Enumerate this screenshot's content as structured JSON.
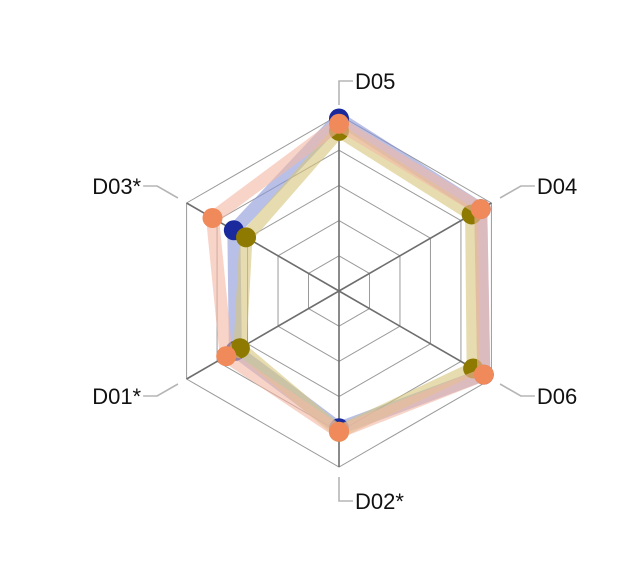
{
  "chart_data": {
    "type": "radar",
    "axes": [
      "D05",
      "D04",
      "D06",
      "D02*",
      "D01*",
      "D03*"
    ],
    "rmax": 1.0,
    "grid_levels": [
      0.2,
      0.4,
      0.6,
      0.8,
      1.0
    ],
    "grid": true,
    "series": [
      {
        "values": [
          0.98,
          0.93,
          0.95,
          0.78,
          0.68,
          0.69
        ],
        "color": "#1a2a9c",
        "band_color": "#8a96d8"
      },
      {
        "values": [
          0.91,
          0.87,
          0.88,
          0.8,
          0.65,
          0.61
        ],
        "color": "#8e7a00",
        "band_color": "#d6c57a"
      },
      {
        "values": [
          0.95,
          0.93,
          0.95,
          0.8,
          0.74,
          0.83
        ],
        "color": "#f08a5a",
        "band_color": "#f3b8a4"
      }
    ]
  }
}
